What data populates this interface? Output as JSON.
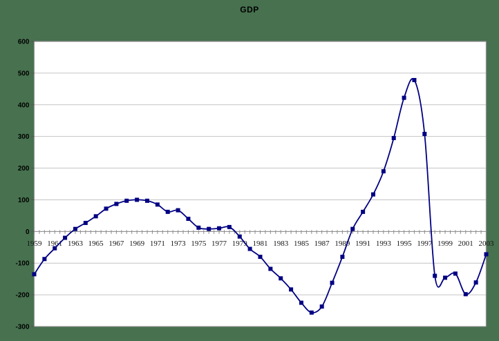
{
  "page": {
    "background_color": "#47714f"
  },
  "chart_data": {
    "type": "line",
    "title": "GDP",
    "smoothed": true,
    "grid": true,
    "legend": false,
    "plot_background": "#ffffff",
    "gridline_color": "#c4c4c4",
    "border_color": "#8c8c8c",
    "axis_line_color": "#9a9a9a",
    "tick_color": "#555555",
    "ylim": [
      -300,
      600
    ],
    "ytick_step": 100,
    "y_tick_labels": [
      "600",
      "500",
      "400",
      "300",
      "200",
      "100",
      "0",
      "-100",
      "-200",
      "-300"
    ],
    "x": [
      1959,
      1960,
      1961,
      1962,
      1963,
      1964,
      1965,
      1966,
      1967,
      1968,
      1969,
      1970,
      1971,
      1972,
      1973,
      1974,
      1975,
      1976,
      1977,
      1978,
      1979,
      1980,
      1981,
      1982,
      1983,
      1984,
      1985,
      1986,
      1987,
      1988,
      1989,
      1990,
      1991,
      1992,
      1993,
      1994,
      1995,
      1996,
      1997,
      1998,
      1999,
      2000,
      2001,
      2002,
      2003
    ],
    "x_tick_labels": [
      "1959",
      "1961",
      "1963",
      "1965",
      "1967",
      "1969",
      "1971",
      "1973",
      "1975",
      "1977",
      "1979",
      "1981",
      "1983",
      "1985",
      "1987",
      "1989",
      "1991",
      "1993",
      "1995",
      "1997",
      "1999",
      "2001",
      "2003"
    ],
    "series": [
      {
        "name": "GDP",
        "color": "#000082",
        "marker": "square",
        "values": [
          -135,
          -87,
          -53,
          -20,
          8,
          27,
          48,
          72,
          87,
          97,
          100,
          97,
          85,
          62,
          67,
          40,
          12,
          8,
          10,
          14,
          -16,
          -55,
          -80,
          -118,
          -148,
          -183,
          -225,
          -256,
          -237,
          -162,
          -80,
          8,
          62,
          117,
          190,
          295,
          422,
          478,
          308,
          -140,
          -146,
          -133,
          -198,
          -161,
          -72
        ]
      }
    ]
  }
}
